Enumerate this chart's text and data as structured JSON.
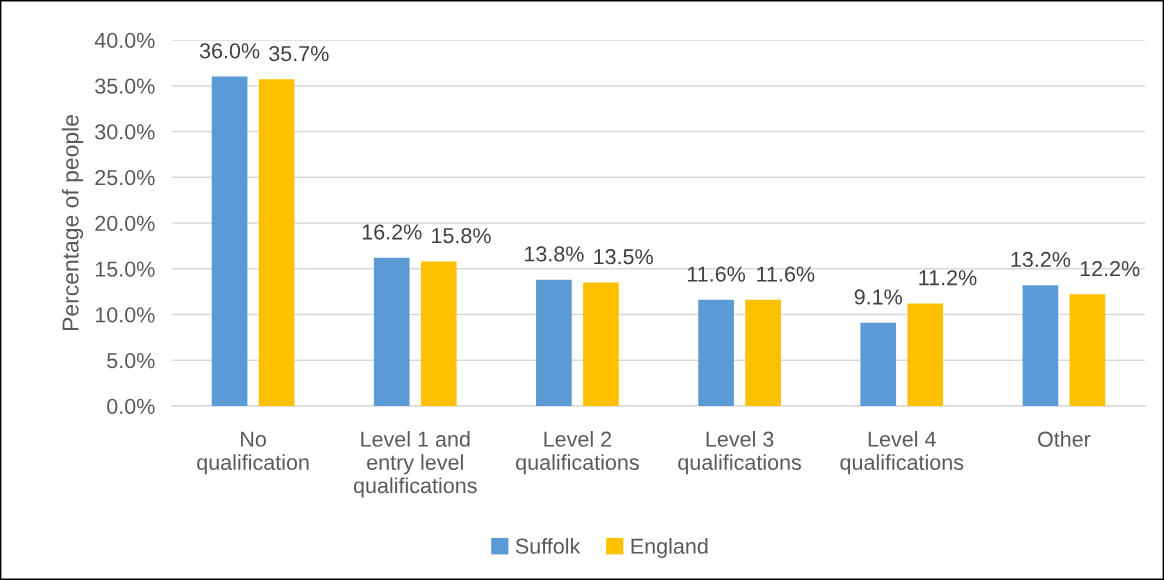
{
  "chart_data": {
    "type": "bar",
    "ylabel": "Percentage of people",
    "categories": [
      "No\nqualification",
      "Level 1 and\nentry level\nqualifications",
      "Level 2\nqualifications",
      "Level 3\nqualifications",
      "Level 4\nqualifications",
      "Other"
    ],
    "series": [
      {
        "name": "Suffolk",
        "color": "#5b9bd5",
        "values": [
          36.0,
          16.2,
          13.8,
          11.6,
          9.1,
          13.2
        ],
        "value_labels": [
          "36.0%",
          "16.2%",
          "13.8%",
          "11.6%",
          "9.1%",
          "13.2%"
        ]
      },
      {
        "name": "England",
        "color": "#ffc000",
        "values": [
          35.7,
          15.8,
          13.5,
          11.6,
          11.2,
          12.2
        ],
        "value_labels": [
          "35.7%",
          "15.8%",
          "13.5%",
          "11.6%",
          "11.2%",
          "12.2%"
        ]
      }
    ],
    "ylim": [
      0,
      40
    ],
    "yticks": [
      {
        "value": 0,
        "label": "0.0%"
      },
      {
        "value": 5,
        "label": "5.0%"
      },
      {
        "value": 10,
        "label": "10.0%"
      },
      {
        "value": 15,
        "label": "15.0%"
      },
      {
        "value": 20,
        "label": "20.0%"
      },
      {
        "value": 25,
        "label": "25.0%"
      },
      {
        "value": 30,
        "label": "30.0%"
      },
      {
        "value": 35,
        "label": "35.0%"
      },
      {
        "value": 40,
        "label": "40.0%"
      }
    ],
    "grid": "y",
    "legend": "bottom"
  }
}
